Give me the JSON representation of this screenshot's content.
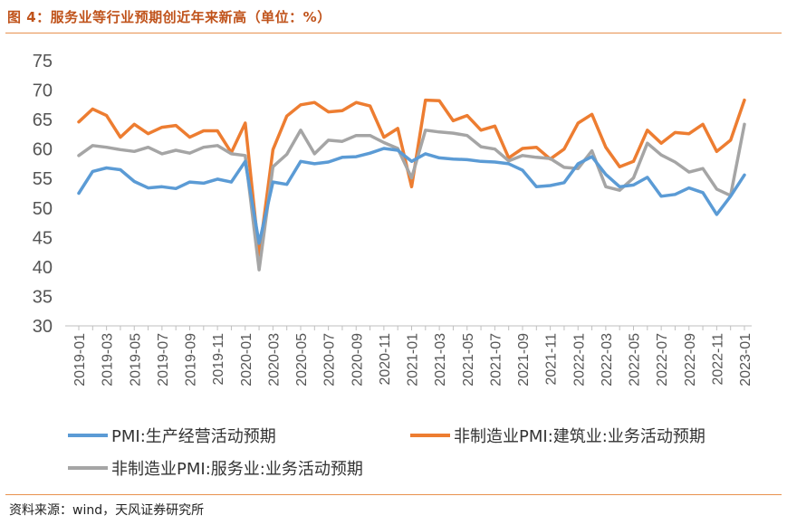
{
  "title": "图 4：服务业等行业预期创近年来新高（单位：%）",
  "source": "资料来源：wind，天风证券研究所",
  "colors": {
    "accent": "#e8914e",
    "title": "#c0531b"
  },
  "chart_data": {
    "type": "line",
    "ylim": [
      30,
      75
    ],
    "yticks": [
      30,
      35,
      40,
      45,
      50,
      55,
      60,
      65,
      70,
      75
    ],
    "grid": false,
    "legend_position": "bottom",
    "x": [
      "2019-01",
      "2019-02",
      "2019-03",
      "2019-04",
      "2019-05",
      "2019-06",
      "2019-07",
      "2019-08",
      "2019-09",
      "2019-10",
      "2019-11",
      "2019-12",
      "2020-01",
      "2020-02",
      "2020-03",
      "2020-04",
      "2020-05",
      "2020-06",
      "2020-07",
      "2020-08",
      "2020-09",
      "2020-10",
      "2020-11",
      "2020-12",
      "2021-01",
      "2021-02",
      "2021-03",
      "2021-04",
      "2021-05",
      "2021-06",
      "2021-07",
      "2021-08",
      "2021-09",
      "2021-10",
      "2021-11",
      "2021-12",
      "2022-01",
      "2022-02",
      "2022-03",
      "2022-04",
      "2022-05",
      "2022-06",
      "2022-07",
      "2022-08",
      "2022-09",
      "2022-10",
      "2022-11",
      "2022-12",
      "2023-01"
    ],
    "xtick_labels": [
      "2019-01",
      "2019-03",
      "2019-05",
      "2019-07",
      "2019-09",
      "2019-11",
      "2020-01",
      "2020-03",
      "2020-05",
      "2020-07",
      "2020-09",
      "2020-11",
      "2021-01",
      "2021-03",
      "2021-05",
      "2021-07",
      "2021-09",
      "2021-11",
      "2022-01",
      "2022-03",
      "2022-05",
      "2022-07",
      "2022-09",
      "2022-11",
      "2023-01"
    ],
    "series": [
      {
        "name": "PMI:生产经营活动预期",
        "color": "#5b9bd5",
        "values": [
          52.5,
          56.2,
          56.8,
          56.5,
          54.5,
          53.4,
          53.6,
          53.3,
          54.4,
          54.2,
          54.9,
          54.4,
          57.9,
          44.0,
          54.4,
          54.0,
          57.9,
          57.5,
          57.8,
          58.6,
          58.7,
          59.3,
          60.1,
          59.8,
          57.9,
          59.2,
          58.5,
          58.3,
          58.2,
          57.9,
          57.8,
          57.5,
          56.4,
          53.6,
          53.8,
          54.3,
          57.5,
          58.7,
          55.7,
          53.6,
          53.9,
          55.2,
          52.0,
          52.3,
          53.4,
          52.6,
          48.9,
          52.0,
          55.6
        ]
      },
      {
        "name": "非制造业PMI:建筑业:业务活动预期",
        "color": "#ed7d31",
        "values": [
          64.6,
          66.8,
          65.7,
          62.0,
          64.2,
          62.6,
          63.7,
          64.0,
          62.0,
          63.1,
          63.1,
          59.4,
          64.4,
          42.0,
          59.9,
          65.6,
          67.5,
          67.9,
          66.3,
          66.5,
          67.9,
          67.3,
          62.0,
          63.5,
          53.6,
          68.3,
          68.2,
          64.8,
          65.7,
          63.2,
          63.9,
          58.5,
          60.1,
          60.3,
          58.3,
          60.0,
          64.4,
          65.9,
          60.3,
          57.0,
          57.9,
          63.2,
          61.0,
          62.8,
          62.6,
          64.2,
          59.6,
          61.5,
          68.3
        ]
      },
      {
        "name": "非制造业PMI:服务业:业务活动预期",
        "color": "#a5a5a5",
        "values": [
          58.9,
          60.6,
          60.3,
          59.9,
          59.6,
          60.3,
          59.2,
          59.8,
          59.3,
          60.3,
          60.6,
          59.2,
          58.9,
          39.5,
          57.0,
          59.1,
          63.2,
          59.2,
          61.5,
          61.3,
          62.3,
          62.3,
          61.1,
          60.1,
          55.1,
          63.2,
          62.9,
          62.7,
          62.3,
          60.4,
          60.0,
          58.0,
          58.9,
          58.6,
          58.4,
          56.9,
          56.7,
          59.7,
          53.6,
          53.0,
          55.1,
          61.0,
          59.0,
          57.8,
          56.1,
          56.7,
          53.2,
          52.1,
          64.2
        ]
      }
    ]
  }
}
